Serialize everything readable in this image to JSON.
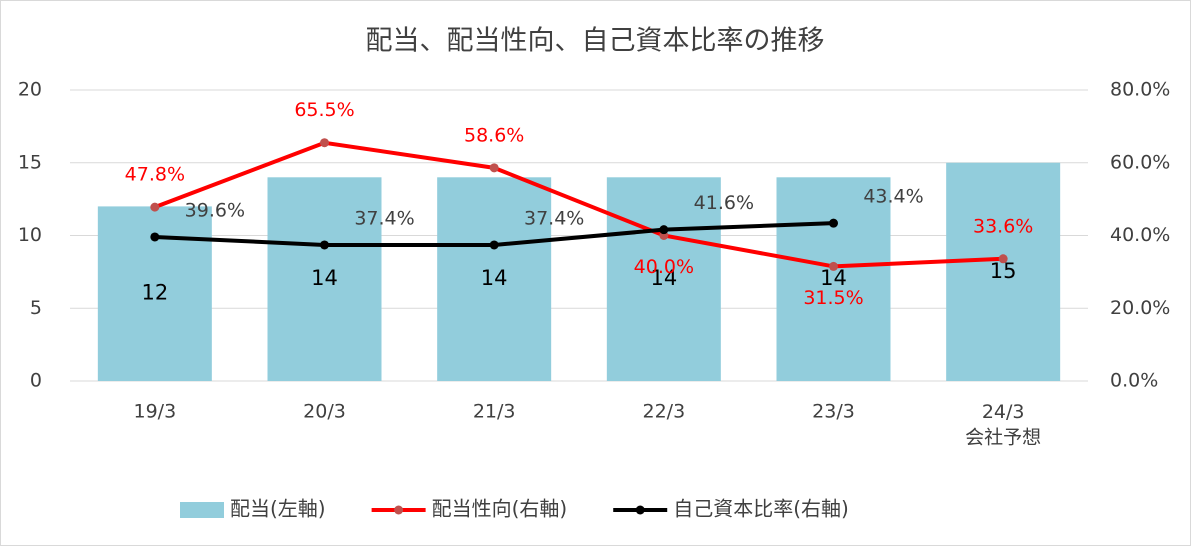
{
  "chart_data": {
    "type": "bar_line",
    "title": "配当、配当性向、自己資本比率の推移",
    "categories": [
      "19/3",
      "20/3",
      "21/3",
      "22/3",
      "23/3",
      "24/3\n会社予想"
    ],
    "ylim": [
      0,
      20
    ],
    "yticks": [
      0,
      5,
      10,
      15,
      20
    ],
    "y2lim": [
      0,
      80
    ],
    "y2ticks": [
      {
        "value": 0,
        "label": "0.0%"
      },
      {
        "value": 20,
        "label": "20.0%"
      },
      {
        "value": 40,
        "label": "40.0%"
      },
      {
        "value": 60,
        "label": "60.0%"
      },
      {
        "value": 80,
        "label": "80.0%"
      }
    ],
    "grid": true,
    "legend": "bottom",
    "series": [
      {
        "name": "配当(左軸)",
        "kind": "bar",
        "color": "#92cddc",
        "values": [
          12,
          14,
          14,
          14,
          14,
          15
        ]
      },
      {
        "name": "配当性向(右軸)",
        "kind": "line",
        "axis": "y2",
        "color": "#ff0000",
        "marker_color": "#c0504d",
        "values": [
          47.8,
          65.5,
          58.6,
          40.0,
          31.5,
          33.6
        ],
        "value_labels": [
          "47.8%",
          "65.5%",
          "58.6%",
          "40.0%",
          "31.5%",
          "33.6%"
        ]
      },
      {
        "name": "自己資本比率(右軸)",
        "kind": "line",
        "axis": "y2",
        "color": "#000000",
        "marker_color": "#000000",
        "values": [
          39.6,
          37.4,
          37.4,
          41.6,
          43.4,
          null
        ],
        "value_labels": [
          "39.6%",
          "37.4%",
          "37.4%",
          "41.6%",
          "43.4%",
          null
        ]
      }
    ]
  }
}
